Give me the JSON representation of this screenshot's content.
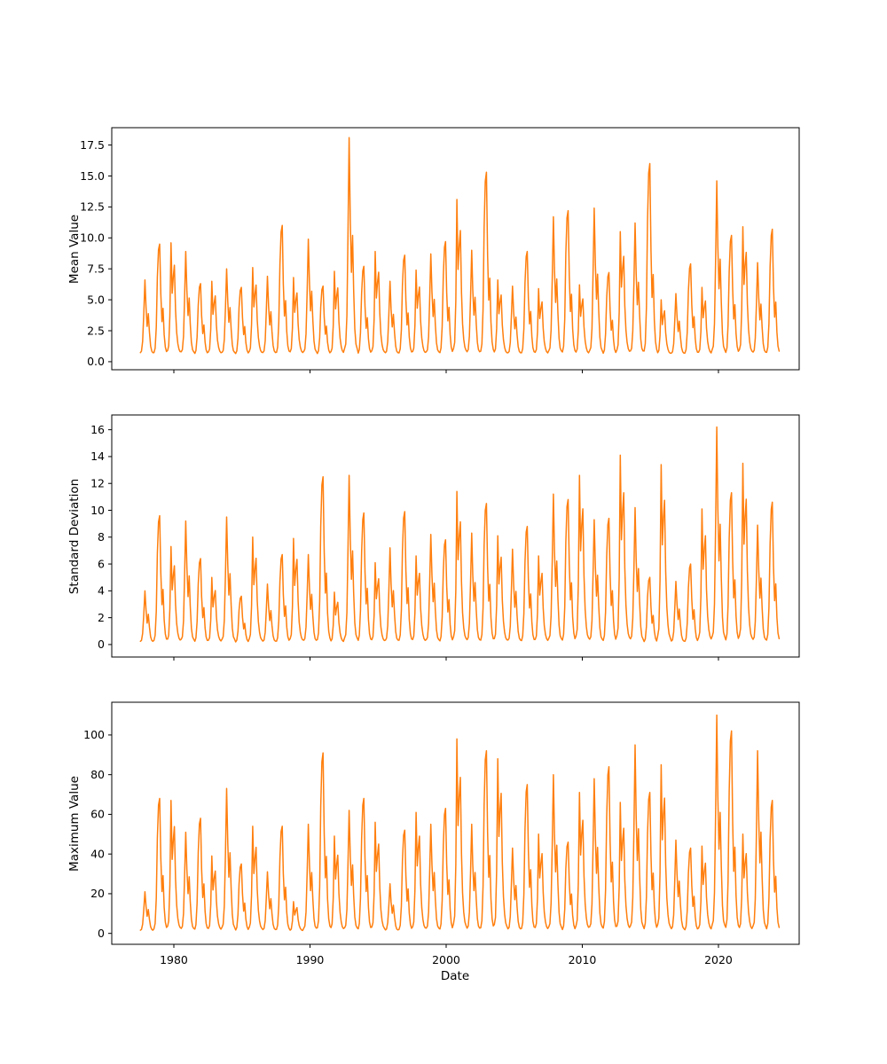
{
  "figure": {
    "background": "#ffffff",
    "line_color": "#ff7f0e",
    "frame_color": "#000000"
  },
  "x_axis": {
    "label": "Date",
    "unit": "year",
    "xlim": [
      1975.44,
      2025.93
    ],
    "tick_values": [
      1980,
      1990,
      2000,
      2010,
      2020
    ],
    "tick_labels": [
      "1980",
      "1990",
      "2000",
      "2010",
      "2020"
    ],
    "data_start": 1977.5,
    "data_end": 2024.46,
    "season_start": 1977.5
  },
  "seasonal_profiles": [
    [
      0.03,
      0.05,
      0.18,
      0.55,
      1.0,
      0.62,
      0.38,
      0.55,
      0.3,
      0.12,
      0.05,
      0.03
    ],
    [
      0.02,
      0.06,
      0.25,
      0.7,
      0.95,
      1.0,
      0.55,
      0.3,
      0.42,
      0.18,
      0.07,
      0.03
    ],
    [
      0.04,
      0.08,
      0.35,
      1.0,
      0.55,
      0.7,
      0.8,
      0.4,
      0.2,
      0.1,
      0.05,
      0.03
    ]
  ],
  "chart_data": [
    {
      "type": "line",
      "ylabel": "Mean Value",
      "color": "#ff7f0e",
      "ylim": [
        -0.65,
        18.9
      ],
      "ytick_values": [
        0,
        2.5,
        5,
        7.5,
        10,
        12.5,
        15,
        17.5
      ],
      "ytick_labels": [
        "0.0",
        "2.5",
        "5.0",
        "7.5",
        "10.0",
        "12.5",
        "15.0",
        "17.5"
      ],
      "baseline": 0.55,
      "annual_peaks": [
        6.6,
        9.5,
        9.6,
        8.9,
        6.3,
        6.5,
        7.5,
        6.0,
        7.6,
        6.9,
        11.0,
        6.8,
        9.9,
        6.1,
        7.3,
        18.1,
        7.7,
        8.9,
        6.5,
        8.6,
        7.4,
        8.7,
        9.7,
        13.1,
        9.0,
        15.3,
        6.6,
        6.1,
        8.9,
        5.9,
        11.7,
        12.2,
        6.2,
        12.4,
        7.2,
        10.5,
        11.2,
        16.0,
        5.0,
        5.5,
        7.9,
        6.0,
        14.6,
        10.2,
        10.9,
        8.0,
        10.7
      ]
    },
    {
      "type": "line",
      "ylabel": "Standard Deviation",
      "color": "#ff7f0e",
      "ylim": [
        -0.93,
        17.1
      ],
      "ytick_values": [
        0,
        2,
        4,
        6,
        8,
        10,
        12,
        14,
        16
      ],
      "ytick_labels": [
        "0",
        "2",
        "4",
        "6",
        "8",
        "10",
        "12",
        "14",
        "16"
      ],
      "baseline": 0.12,
      "annual_peaks": [
        4.0,
        9.6,
        7.3,
        9.2,
        6.4,
        5.0,
        9.5,
        3.6,
        8.0,
        4.5,
        6.7,
        7.9,
        6.7,
        12.5,
        3.9,
        12.6,
        9.8,
        6.1,
        7.2,
        9.9,
        6.6,
        8.2,
        7.8,
        11.4,
        8.3,
        10.5,
        8.1,
        7.1,
        8.8,
        6.6,
        11.2,
        10.8,
        12.6,
        9.3,
        9.4,
        14.1,
        10.2,
        5.0,
        13.4,
        4.7,
        6.0,
        10.1,
        16.2,
        11.3,
        13.5,
        8.9,
        10.6
      ]
    },
    {
      "type": "line",
      "ylabel": "Maximum Value",
      "xlabel": "Date",
      "color": "#ff7f0e",
      "ylim": [
        -5.5,
        116.5
      ],
      "ytick_values": [
        0,
        20,
        40,
        60,
        80,
        100
      ],
      "ytick_labels": [
        "0",
        "20",
        "40",
        "60",
        "80",
        "100"
      ],
      "baseline": 1.0,
      "annual_peaks": [
        21,
        68,
        67,
        51,
        58,
        39,
        73,
        35,
        54,
        31,
        54,
        16,
        55,
        91,
        49,
        62,
        68,
        56,
        25,
        52,
        61,
        55,
        63,
        98,
        55,
        92,
        88,
        43,
        75,
        50,
        80,
        46,
        71,
        78,
        84,
        66,
        95,
        71,
        85,
        47,
        43,
        44,
        110,
        102,
        50,
        92,
        67
      ]
    }
  ]
}
